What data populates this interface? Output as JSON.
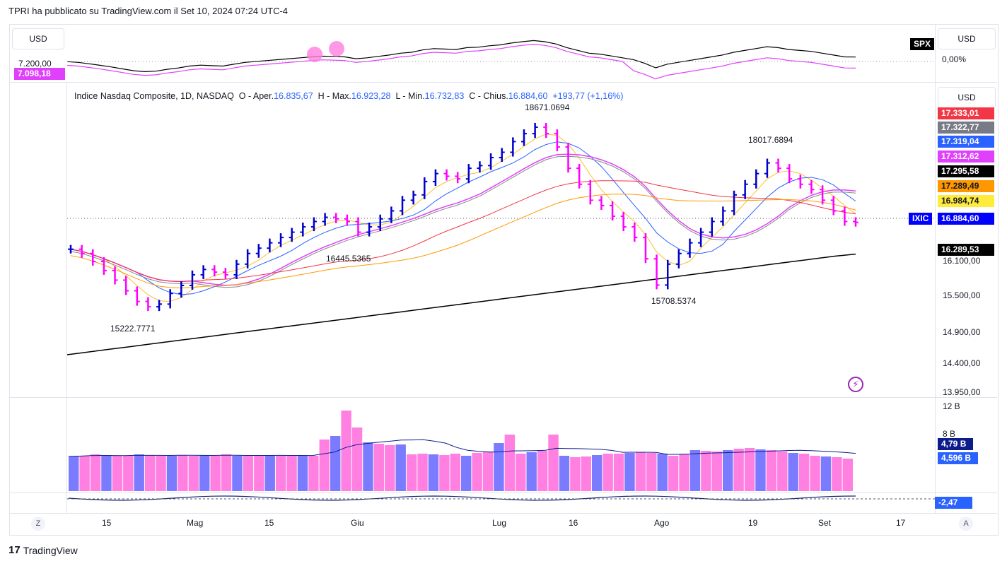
{
  "header": {
    "title": "TPRI ha pubblicato su TradingView.com il Set 10, 2024 07:24 UTC-4"
  },
  "top_pane": {
    "currency_left": "USD",
    "currency_right": "USD",
    "left_value": "7.098,18",
    "left_scale": "7.200,00",
    "symbol": "SPX",
    "right_value": "0,00%"
  },
  "main_pane": {
    "currency": "USD",
    "legend": {
      "name": "Indice Nasdaq Composite, 1D, NASDAQ",
      "open_lbl": "O - Aper.",
      "open": "16.835,67",
      "high_lbl": "H - Max.",
      "high": "16.923,28",
      "low_lbl": "L - Min.",
      "low": "16.732,83",
      "close_lbl": "C - Chius.",
      "close": "16.884,60",
      "change": "+193,77 (+1,16%)"
    },
    "annotations": [
      "18671.0694",
      "18017.6894",
      "16445.5365",
      "15708.5374",
      "15222.7771"
    ],
    "price_tags": [
      {
        "text": "17.333,01",
        "bg": "#f23645",
        "fg": "#ffffff"
      },
      {
        "text": "17.322,77",
        "bg": "#787b86",
        "fg": "#ffffff"
      },
      {
        "text": "17.319,04",
        "bg": "#2962ff",
        "fg": "#ffffff"
      },
      {
        "text": "17.312,62",
        "bg": "#e040fb",
        "fg": "#ffffff"
      },
      {
        "text": "17.295,58",
        "bg": "#000000",
        "fg": "#ffffff"
      },
      {
        "text": "17.289,49",
        "bg": "#ff9800",
        "fg": "#131722"
      },
      {
        "text": "16.984,74",
        "bg": "#ffeb3b",
        "fg": "#131722"
      },
      {
        "text": "16.884,60",
        "bg": "#0000ff",
        "fg": "#ffffff"
      },
      {
        "text": "16.289,53",
        "bg": "#000000",
        "fg": "#ffffff"
      }
    ],
    "symbol_tag": "IXIC",
    "axis_ticks": [
      "16.100,00",
      "15.500,00",
      "14.900,00",
      "14.400,00",
      "13.950,00"
    ]
  },
  "volume_pane": {
    "axis_ticks": [
      "12 B",
      "8 B"
    ],
    "tags": [
      {
        "text": "4,79 B",
        "bg": "#0c1c8c",
        "fg": "#ffffff"
      },
      {
        "text": "4,596 B",
        "bg": "#2962ff",
        "fg": "#ffffff"
      }
    ]
  },
  "osc_pane": {
    "tag": "-2,47"
  },
  "time_axis": [
    "15",
    "Mag",
    "15",
    "Giu",
    "Lug",
    "16",
    "Ago",
    "19",
    "Set",
    "17"
  ],
  "buttons": {
    "z": "Z",
    "a": "A"
  },
  "footer": {
    "brand": "TradingView"
  },
  "chart_data": {
    "type": "line",
    "title": "Indice Nasdaq Composite, 1D, NASDAQ",
    "series": [
      {
        "name": "IXIC",
        "values": [
          16380,
          16300,
          16150,
          15980,
          15800,
          15600,
          15400,
          15300,
          15350,
          15550,
          15700,
          15900,
          16000,
          15950,
          15900,
          16100,
          16300,
          16400,
          16500,
          16600,
          16700,
          16800,
          16900,
          16980,
          16950,
          16900,
          16700,
          16800,
          16950,
          17100,
          17300,
          17400,
          17650,
          17800,
          17750,
          17700,
          17900,
          17950,
          18100,
          18200,
          18400,
          18550,
          18671,
          18550,
          18300,
          17900,
          17600,
          17300,
          17200,
          17000,
          16800,
          16600,
          16200,
          15708,
          16100,
          16300,
          16500,
          16700,
          16900,
          17100,
          17400,
          17600,
          17800,
          18000,
          17900,
          17700,
          17600,
          17500,
          17300,
          17100,
          16900,
          16884
        ]
      },
      {
        "values": [
          14400,
          14450,
          14500,
          14550,
          14600,
          14650,
          14700,
          14750,
          14800,
          14850,
          14900,
          14950,
          15000,
          15050,
          15100,
          15150,
          15200,
          15250,
          15300,
          15350,
          15400,
          15450,
          15500,
          15550,
          15600,
          15650,
          15700,
          15750,
          15800,
          15850,
          15900,
          15950,
          16000,
          16050,
          16100,
          16150,
          16200,
          16250,
          16289
        ]
      }
    ],
    "annotations": [
      {
        "text": "18671.0694"
      },
      {
        "text": "18017.6894"
      },
      {
        "text": "16445.5365"
      },
      {
        "text": "15708.5374"
      },
      {
        "text": "15222.7771"
      }
    ],
    "volume": [
      4.9,
      5.0,
      5.2,
      5.1,
      5.0,
      5.0,
      5.2,
      5.1,
      5.0,
      5.0,
      5.1,
      5.0,
      5.1,
      5.0,
      5.2,
      5.0,
      5.0,
      5.1,
      5.0,
      5.1,
      5.0,
      5.0,
      5.0,
      7.3,
      7.8,
      11.4,
      9.0,
      6.9,
      6.7,
      6.5,
      6.6,
      5.2,
      5.3,
      5.2,
      5.1,
      5.3,
      5.0,
      5.4,
      5.6,
      6.8,
      8.0,
      5.3,
      5.5,
      5.7,
      8.0,
      5.0,
      4.8,
      4.9,
      5.1,
      5.3,
      5.3,
      5.4,
      5.5,
      5.4,
      5.3,
      5.0,
      5.2,
      5.8,
      5.7,
      5.6,
      5.8,
      6.0,
      6.1,
      5.9,
      5.8,
      5.6,
      5.4,
      5.3,
      5.0,
      4.9,
      4.8,
      4.6
    ]
  }
}
